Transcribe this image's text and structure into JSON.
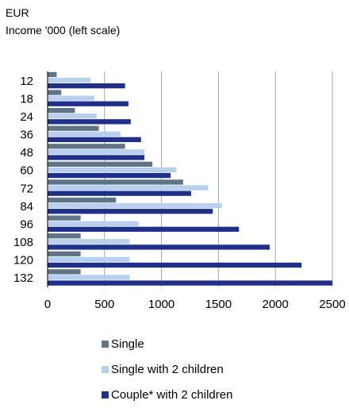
{
  "header": {
    "currency": "EUR",
    "subtitle": "Income '000 (left scale)"
  },
  "chart_data": {
    "type": "bar",
    "orientation": "horizontal",
    "categories": [
      "12",
      "18",
      "24",
      "36",
      "48",
      "60",
      "72",
      "84",
      "96",
      "108",
      "120",
      "132"
    ],
    "xlim": [
      0,
      2500
    ],
    "x_ticks": [
      "0",
      "500",
      "1000",
      "1500",
      "2000",
      "2500"
    ],
    "grid": "vertical",
    "legend_position": "bottom",
    "series": [
      {
        "name": "Single",
        "color": "#5f7587",
        "values": [
          80,
          120,
          240,
          450,
          680,
          920,
          1190,
          600,
          290,
          290,
          290,
          290
        ]
      },
      {
        "name": "Single with 2 children",
        "color": "#b7d0ee",
        "values": [
          380,
          410,
          430,
          640,
          850,
          1130,
          1410,
          1530,
          800,
          720,
          720,
          720
        ]
      },
      {
        "name": "Couple* with 2 children",
        "color": "#1e2f8e",
        "values": [
          680,
          710,
          730,
          820,
          850,
          1080,
          1260,
          1450,
          1680,
          1950,
          2230,
          2500
        ]
      }
    ]
  }
}
